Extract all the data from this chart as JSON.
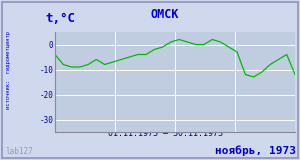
{
  "title": "ОМСК",
  "ylabel": "t,°C",
  "xlabel_range": "01.11.1973 – 30.11.1973",
  "footer": "ноябрь, 1973",
  "watermark": "lab127",
  "source_label": "источник:  гидрометцентр",
  "line_color": "#00bb00",
  "bg_color": "#d0d8ee",
  "plot_bg_color": "#c0cce0",
  "border_color": "#9090bb",
  "title_color": "#0000cc",
  "footer_color": "#0000cc",
  "axis_label_color": "#0000cc",
  "tick_label_color": "#000088",
  "ylim": [
    -35,
    5
  ],
  "yticks": [
    0,
    -10,
    -20,
    -30
  ],
  "temperatures": [
    -4,
    -8,
    -9,
    -9,
    -8,
    -6,
    -8,
    -7,
    -6,
    -5,
    -4,
    -4,
    -2,
    -1,
    1,
    2,
    1,
    0,
    0,
    2,
    1,
    -1,
    -3,
    -12,
    -13,
    -11,
    -8,
    -6,
    -4,
    -12
  ]
}
